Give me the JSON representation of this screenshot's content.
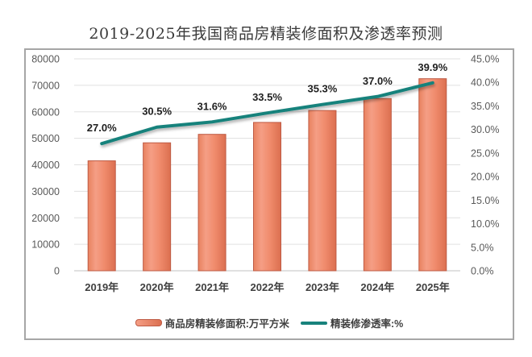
{
  "title": "2019-2025年我国商品房精装修面积及渗透率预测",
  "chart_data": {
    "type": "combo",
    "title": "2019-2025年我国商品房精装修面积及渗透率预测",
    "categories": [
      "2019年",
      "2020年",
      "2021年",
      "2022年",
      "2023年",
      "2024年",
      "2025年"
    ],
    "series": [
      {
        "name": "商品房精装修面积:万平方米",
        "type": "bar",
        "axis": "left",
        "values": [
          41500,
          48300,
          51500,
          56000,
          60500,
          65000,
          72500
        ]
      },
      {
        "name": "精装修渗透率:%",
        "type": "line",
        "axis": "right",
        "values": [
          27.0,
          30.5,
          31.6,
          33.5,
          35.3,
          37.0,
          39.9
        ],
        "point_labels": [
          "27.0%",
          "30.5%",
          "31.6%",
          "33.5%",
          "35.3%",
          "37.0%",
          "39.9%"
        ]
      }
    ],
    "left_axis": {
      "min": 0,
      "max": 80000,
      "step": 10000,
      "tick_labels_top_to_bottom": [
        "80000",
        "70000",
        "60000",
        "50000",
        "40000",
        "30000",
        "20000",
        "10000",
        "0"
      ]
    },
    "right_axis": {
      "min": 0,
      "max": 45,
      "step": 5,
      "tick_labels_top_to_bottom": [
        "45.0%",
        "40.0%",
        "35.0%",
        "30.0%",
        "25.0%",
        "20.0%",
        "15.0%",
        "10.0%",
        "5.0%",
        "0.0%"
      ]
    },
    "grid": true,
    "legend_position": "bottom"
  },
  "legend": {
    "items": [
      {
        "label": "商品房精装修面积:万平方米",
        "swatch": "bar"
      },
      {
        "label": "精装修渗透率:%",
        "swatch": "line"
      }
    ]
  },
  "colors": {
    "bar_fill": "#F08B6C",
    "bar_fill_light": "#F59E85",
    "bar_fill_dark": "#DB6F50",
    "bar_edge": "#E8825F",
    "bar_border": "#BE5B45",
    "line": "#18827C",
    "grid": "#E0E0E0",
    "axis": "#C2C2C2",
    "frame_border": "#A6A6A6",
    "tick_text": "#595959",
    "category_text": "#3F3F3F",
    "data_label_text": "#1F1F1F",
    "title_text": "#3A3A3A"
  }
}
